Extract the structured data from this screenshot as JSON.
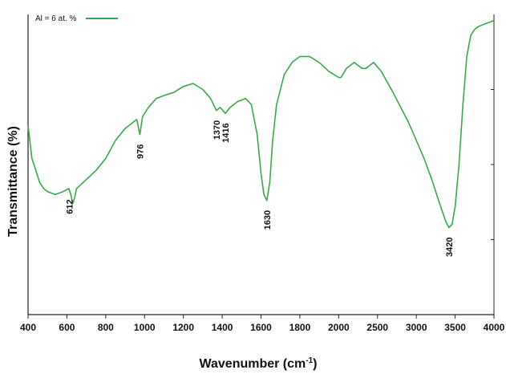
{
  "chart_data": {
    "type": "line",
    "xlabel": "Wavenumber (cm",
    "xlabel_sup": "-1",
    "xlabel_tail": ")",
    "ylabel": "Transmittance (%)",
    "xlim": [
      400,
      4000
    ],
    "ylim": [
      0,
      100
    ],
    "x_ticks": [
      400,
      600,
      800,
      1000,
      1200,
      1400,
      1600,
      1800,
      2000,
      2500,
      3000,
      3500,
      4000
    ],
    "grid": false,
    "legend": "top-left",
    "series": [
      {
        "name": "Al = 6 at. %",
        "color": "#3aa84a",
        "points": [
          [
            400,
            63
          ],
          [
            420,
            52
          ],
          [
            440,
            48
          ],
          [
            460,
            44
          ],
          [
            480,
            42
          ],
          [
            500,
            41
          ],
          [
            540,
            40
          ],
          [
            580,
            41
          ],
          [
            610,
            42
          ],
          [
            620,
            40
          ],
          [
            630,
            37
          ],
          [
            640,
            39
          ],
          [
            650,
            42
          ],
          [
            700,
            45
          ],
          [
            750,
            48
          ],
          [
            800,
            52
          ],
          [
            850,
            58
          ],
          [
            900,
            62
          ],
          [
            940,
            64
          ],
          [
            960,
            65
          ],
          [
            976,
            60
          ],
          [
            990,
            66
          ],
          [
            1020,
            69
          ],
          [
            1060,
            72
          ],
          [
            1100,
            73
          ],
          [
            1150,
            74
          ],
          [
            1200,
            76
          ],
          [
            1250,
            77
          ],
          [
            1300,
            75
          ],
          [
            1340,
            72
          ],
          [
            1370,
            68
          ],
          [
            1390,
            69
          ],
          [
            1416,
            67
          ],
          [
            1440,
            69
          ],
          [
            1480,
            71
          ],
          [
            1520,
            72
          ],
          [
            1550,
            70
          ],
          [
            1580,
            60
          ],
          [
            1600,
            47
          ],
          [
            1615,
            40
          ],
          [
            1630,
            38
          ],
          [
            1645,
            44
          ],
          [
            1660,
            58
          ],
          [
            1680,
            70
          ],
          [
            1720,
            80
          ],
          [
            1760,
            84
          ],
          [
            1800,
            86
          ],
          [
            1850,
            86
          ],
          [
            1900,
            84
          ],
          [
            1950,
            81
          ],
          [
            2000,
            79
          ],
          [
            2030,
            79
          ],
          [
            2100,
            82
          ],
          [
            2200,
            84
          ],
          [
            2300,
            82
          ],
          [
            2350,
            82
          ],
          [
            2400,
            83
          ],
          [
            2450,
            84
          ],
          [
            2550,
            81
          ],
          [
            2700,
            74
          ],
          [
            2800,
            69
          ],
          [
            2900,
            64
          ],
          [
            3000,
            58
          ],
          [
            3100,
            52
          ],
          [
            3200,
            45
          ],
          [
            3300,
            37
          ],
          [
            3380,
            31
          ],
          [
            3420,
            29
          ],
          [
            3460,
            30
          ],
          [
            3500,
            36
          ],
          [
            3550,
            50
          ],
          [
            3600,
            70
          ],
          [
            3650,
            86
          ],
          [
            3700,
            93
          ],
          [
            3750,
            95
          ],
          [
            3800,
            96
          ],
          [
            3900,
            97
          ],
          [
            4000,
            98
          ]
        ]
      }
    ],
    "annotations": [
      {
        "text": "612",
        "x": 612
      },
      {
        "text": "976",
        "x": 976
      },
      {
        "text": "1370",
        "x": 1370
      },
      {
        "text": "1416",
        "x": 1416
      },
      {
        "text": "1630",
        "x": 1630
      },
      {
        "text": "3420",
        "x": 3420
      }
    ]
  }
}
